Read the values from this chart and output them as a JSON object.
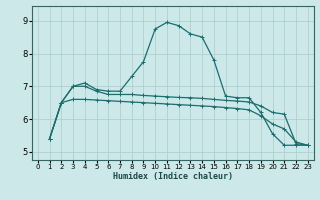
{
  "title": "",
  "xlabel": "Humidex (Indice chaleur)",
  "background_color": "#cce8e8",
  "plot_bg": "#cce8e8",
  "grid_color": "#aacccc",
  "line_color": "#1a6e6e",
  "xlim": [
    -0.5,
    23.5
  ],
  "ylim": [
    4.75,
    9.45
  ],
  "xticks": [
    0,
    1,
    2,
    3,
    4,
    5,
    6,
    7,
    8,
    9,
    10,
    11,
    12,
    13,
    14,
    15,
    16,
    17,
    18,
    19,
    20,
    21,
    22,
    23
  ],
  "yticks": [
    5,
    6,
    7,
    8,
    9
  ],
  "series": [
    {
      "x": [
        1,
        2,
        3,
        4,
        5,
        6,
        7,
        8,
        9,
        10,
        11,
        12,
        13,
        14,
        15,
        16,
        17,
        18,
        19,
        20,
        21,
        22,
        23
      ],
      "y": [
        5.4,
        6.5,
        7.0,
        7.1,
        6.9,
        6.85,
        6.85,
        7.3,
        7.75,
        8.75,
        8.95,
        8.85,
        8.6,
        8.5,
        7.8,
        6.7,
        6.65,
        6.65,
        6.2,
        5.55,
        5.2,
        5.2,
        5.2
      ]
    },
    {
      "x": [
        1,
        2,
        3,
        4,
        5,
        6,
        7,
        8,
        9,
        10,
        11,
        12,
        13,
        14,
        15,
        16,
        17,
        18,
        19,
        20,
        21,
        22,
        23
      ],
      "y": [
        5.4,
        6.5,
        7.0,
        7.0,
        6.85,
        6.75,
        6.75,
        6.75,
        6.72,
        6.7,
        6.68,
        6.66,
        6.65,
        6.63,
        6.6,
        6.57,
        6.55,
        6.52,
        6.4,
        6.2,
        6.15,
        5.25,
        5.2
      ]
    },
    {
      "x": [
        1,
        2,
        3,
        4,
        5,
        6,
        7,
        8,
        9,
        10,
        11,
        12,
        13,
        14,
        15,
        16,
        17,
        18,
        19,
        20,
        21,
        22,
        23
      ],
      "y": [
        5.4,
        6.5,
        6.6,
        6.6,
        6.58,
        6.56,
        6.54,
        6.52,
        6.5,
        6.48,
        6.46,
        6.44,
        6.42,
        6.4,
        6.38,
        6.35,
        6.32,
        6.28,
        6.1,
        5.85,
        5.7,
        5.3,
        5.2
      ]
    }
  ]
}
